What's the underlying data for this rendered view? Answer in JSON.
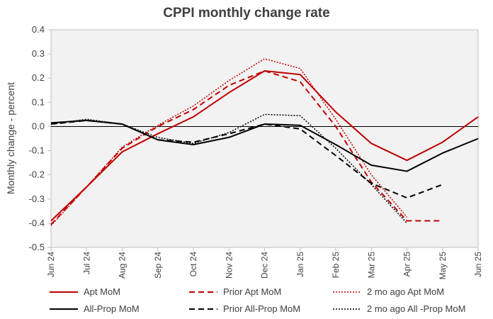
{
  "chart_data": {
    "type": "line",
    "title": "CPPI monthly change rate",
    "xlabel": "",
    "ylabel": "Monthly change - percent",
    "ylim": [
      -0.5,
      0.4
    ],
    "yticks": [
      -0.5,
      -0.4,
      -0.3,
      -0.2,
      -0.1,
      0.0,
      0.1,
      0.2,
      0.3,
      0.4
    ],
    "ytick_labels": [
      "-0.5",
      "-0.4",
      "-0.3",
      "-0.2",
      "-0.1",
      "0.0",
      "0.1",
      "0.2",
      "0.3",
      "0.4"
    ],
    "categories": [
      "Jun 24",
      "Jul 24",
      "Aug 24",
      "Sep 24",
      "Oct 24",
      "Nov 24",
      "Dec 24",
      "Jan 25",
      "Feb 25",
      "Mar 25",
      "Apr 25",
      "May 25",
      "Jun 25"
    ],
    "legend_position": "bottom",
    "series": [
      {
        "name": "Apt MoM",
        "color": "#C00000",
        "dash": "solid",
        "width": 2,
        "values": [
          -0.39,
          -0.25,
          -0.105,
          -0.03,
          0.04,
          0.14,
          0.23,
          0.215,
          0.06,
          -0.07,
          -0.14,
          -0.065,
          0.04
        ]
      },
      {
        "name": "Prior Apt MoM",
        "color": "#C00000",
        "dash": "dashed",
        "width": 2,
        "values": [
          -0.405,
          -0.25,
          -0.09,
          0.0,
          0.07,
          0.17,
          0.23,
          0.185,
          0.0,
          -0.23,
          -0.39,
          -0.39,
          null
        ]
      },
      {
        "name": "2 mo ago Apt MoM",
        "color": "#C00000",
        "dash": "dotted",
        "width": 1.5,
        "values": [
          -0.41,
          -0.25,
          -0.085,
          0.005,
          0.085,
          0.19,
          0.28,
          0.24,
          0.03,
          -0.2,
          -0.375,
          null,
          null
        ]
      },
      {
        "name": "All-Prop MoM",
        "color": "#000000",
        "dash": "solid",
        "width": 2,
        "values": [
          0.015,
          0.025,
          0.01,
          -0.055,
          -0.075,
          -0.045,
          0.01,
          0.005,
          -0.075,
          -0.16,
          -0.185,
          -0.11,
          -0.05
        ]
      },
      {
        "name": "Prior All-Prop MoM",
        "color": "#000000",
        "dash": "dashed",
        "width": 2,
        "values": [
          0.01,
          0.025,
          0.01,
          -0.055,
          -0.065,
          -0.03,
          0.01,
          -0.01,
          -0.12,
          -0.235,
          -0.295,
          -0.24,
          null
        ]
      },
      {
        "name": "2 mo ago All -Prop MoM",
        "color": "#000000",
        "dash": "dotted",
        "width": 1.5,
        "values": [
          0.01,
          0.03,
          0.01,
          -0.045,
          -0.07,
          -0.025,
          0.05,
          0.045,
          -0.09,
          -0.24,
          -0.4,
          null,
          null
        ]
      }
    ]
  }
}
